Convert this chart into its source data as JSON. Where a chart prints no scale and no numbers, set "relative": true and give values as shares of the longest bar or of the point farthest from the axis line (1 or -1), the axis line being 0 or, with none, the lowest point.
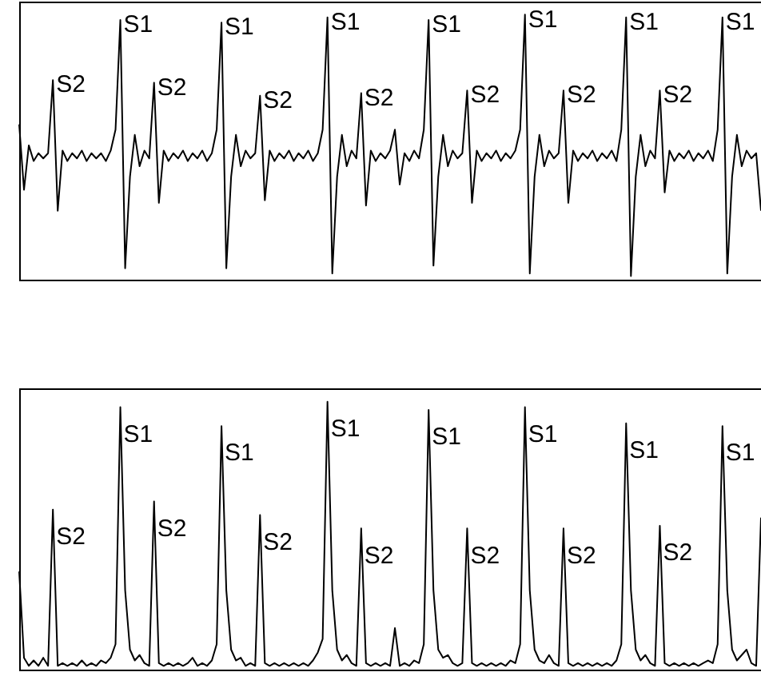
{
  "chart_data": [
    {
      "type": "line",
      "relative": true,
      "marker": "none",
      "categories": [
        null,
        null,
        null,
        null,
        null,
        null,
        null,
        null,
        null,
        null,
        null,
        null,
        null,
        null,
        null,
        null,
        null,
        null,
        null,
        null,
        null,
        null,
        null,
        null,
        null,
        null,
        null,
        null,
        null,
        null,
        null,
        null,
        null,
        null,
        null,
        null,
        null,
        null,
        null,
        null,
        null,
        null,
        null,
        null,
        null,
        null,
        null,
        null,
        null,
        null,
        null,
        null,
        null,
        null,
        null,
        null,
        null,
        null,
        null,
        null,
        null,
        null,
        null,
        null,
        null,
        null,
        null,
        null,
        null,
        null,
        null,
        null,
        null,
        null,
        null,
        null,
        null,
        null,
        null,
        null,
        null,
        null,
        null,
        null,
        null,
        null,
        null,
        null,
        null,
        null,
        null,
        null,
        null,
        null,
        null,
        null,
        null,
        null,
        null,
        null,
        null,
        null,
        null,
        null,
        null,
        null,
        null,
        null,
        null,
        null,
        null,
        null,
        null,
        null,
        null,
        null,
        null,
        null,
        null,
        null,
        null,
        null,
        null,
        null,
        null,
        null,
        null,
        null,
        null,
        null,
        null,
        null,
        null,
        null,
        null,
        null,
        null,
        null,
        null,
        null,
        null,
        null,
        null,
        null,
        null,
        null,
        null,
        null,
        null,
        null,
        null,
        null,
        null,
        null,
        null
      ],
      "series": [
        {
          "color": "#000000",
          "values": [
            0.58,
            0.33,
            0.5,
            0.44,
            0.47,
            0.45,
            0.47,
            0.75,
            0.25,
            0.48,
            0.44,
            0.47,
            0.45,
            0.48,
            0.44,
            0.47,
            0.45,
            0.47,
            0.44,
            0.48,
            0.56,
            0.98,
            0.03,
            0.38,
            0.54,
            0.42,
            0.48,
            0.45,
            0.74,
            0.28,
            0.48,
            0.44,
            0.47,
            0.45,
            0.48,
            0.44,
            0.47,
            0.45,
            0.48,
            0.44,
            0.47,
            0.56,
            0.97,
            0.03,
            0.38,
            0.54,
            0.42,
            0.48,
            0.45,
            0.47,
            0.69,
            0.29,
            0.48,
            0.44,
            0.47,
            0.45,
            0.48,
            0.44,
            0.47,
            0.45,
            0.48,
            0.44,
            0.47,
            0.56,
            0.99,
            0.01,
            0.38,
            0.54,
            0.42,
            0.48,
            0.45,
            0.7,
            0.27,
            0.48,
            0.44,
            0.47,
            0.45,
            0.48,
            0.56,
            0.35,
            0.47,
            0.44,
            0.48,
            0.45,
            0.56,
            0.98,
            0.04,
            0.38,
            0.54,
            0.42,
            0.48,
            0.45,
            0.47,
            0.71,
            0.28,
            0.48,
            0.44,
            0.47,
            0.45,
            0.48,
            0.44,
            0.47,
            0.45,
            0.48,
            0.56,
            1,
            0.01,
            0.38,
            0.54,
            0.42,
            0.48,
            0.45,
            0.47,
            0.71,
            0.28,
            0.48,
            0.44,
            0.47,
            0.45,
            0.48,
            0.44,
            0.47,
            0.45,
            0.48,
            0.44,
            0.56,
            0.99,
            0,
            0.38,
            0.54,
            0.42,
            0.48,
            0.45,
            0.71,
            0.32,
            0.48,
            0.44,
            0.47,
            0.45,
            0.48,
            0.44,
            0.47,
            0.45,
            0.48,
            0.44,
            0.56,
            0.99,
            0.01,
            0.38,
            0.54,
            0.42,
            0.48,
            0.45,
            0.47,
            0.25
          ]
        }
      ],
      "annotations": [
        "S2",
        "S1",
        "S2",
        "S1",
        "S2",
        "S1",
        "S2",
        "S1",
        "S2",
        "S1",
        "S2",
        "S1",
        "S2",
        "S1"
      ]
    },
    {
      "type": "line",
      "relative": true,
      "marker": "none",
      "categories": [
        null,
        null,
        null,
        null,
        null,
        null,
        null,
        null,
        null,
        null,
        null,
        null,
        null,
        null,
        null,
        null,
        null,
        null,
        null,
        null,
        null,
        null,
        null,
        null,
        null,
        null,
        null,
        null,
        null,
        null,
        null,
        null,
        null,
        null,
        null,
        null,
        null,
        null,
        null,
        null,
        null,
        null,
        null,
        null,
        null,
        null,
        null,
        null,
        null,
        null,
        null,
        null,
        null,
        null,
        null,
        null,
        null,
        null,
        null,
        null,
        null,
        null,
        null,
        null,
        null,
        null,
        null,
        null,
        null,
        null,
        null,
        null,
        null,
        null,
        null,
        null,
        null,
        null,
        null,
        null,
        null,
        null,
        null,
        null,
        null,
        null,
        null,
        null,
        null,
        null,
        null,
        null,
        null,
        null,
        null,
        null,
        null,
        null,
        null,
        null,
        null,
        null,
        null,
        null,
        null,
        null,
        null,
        null,
        null,
        null,
        null,
        null,
        null,
        null,
        null,
        null,
        null,
        null,
        null,
        null,
        null,
        null,
        null,
        null,
        null,
        null,
        null,
        null,
        null,
        null,
        null,
        null,
        null,
        null,
        null,
        null,
        null,
        null,
        null,
        null,
        null,
        null,
        null,
        null,
        null,
        null,
        null,
        null,
        null,
        null,
        null,
        null,
        null,
        null,
        null
      ],
      "series": [
        {
          "color": "#000000",
          "values": [
            0.37,
            0.05,
            0.02,
            0.04,
            0.02,
            0.05,
            0.02,
            0.6,
            0.02,
            0.03,
            0.02,
            0.03,
            0.02,
            0.04,
            0.02,
            0.03,
            0.02,
            0.04,
            0.03,
            0.05,
            0.1,
            0.98,
            0.3,
            0.08,
            0.04,
            0.06,
            0.03,
            0.02,
            0.63,
            0.03,
            0.02,
            0.03,
            0.02,
            0.03,
            0.02,
            0.03,
            0.05,
            0.02,
            0.03,
            0.02,
            0.04,
            0.1,
            0.91,
            0.3,
            0.08,
            0.04,
            0.05,
            0.02,
            0.03,
            0.02,
            0.58,
            0.03,
            0.02,
            0.03,
            0.02,
            0.03,
            0.02,
            0.03,
            0.02,
            0.03,
            0.02,
            0.04,
            0.07,
            0.12,
            1,
            0.3,
            0.08,
            0.04,
            0.06,
            0.03,
            0.02,
            0.53,
            0.03,
            0.02,
            0.03,
            0.02,
            0.03,
            0.02,
            0.16,
            0.02,
            0.03,
            0.02,
            0.04,
            0.03,
            0.1,
            0.97,
            0.3,
            0.08,
            0.05,
            0.06,
            0.03,
            0.02,
            0.03,
            0.53,
            0.03,
            0.02,
            0.03,
            0.02,
            0.03,
            0.02,
            0.03,
            0.02,
            0.04,
            0.03,
            0.1,
            0.98,
            0.3,
            0.08,
            0.04,
            0.03,
            0.06,
            0.03,
            0.02,
            0.53,
            0.03,
            0.02,
            0.03,
            0.02,
            0.03,
            0.02,
            0.03,
            0.02,
            0.03,
            0.02,
            0.04,
            0.1,
            0.92,
            0.3,
            0.08,
            0.04,
            0.06,
            0.03,
            0.02,
            0.54,
            0.03,
            0.02,
            0.03,
            0.02,
            0.03,
            0.02,
            0.03,
            0.02,
            0.03,
            0.04,
            0.03,
            0.1,
            0.91,
            0.3,
            0.08,
            0.04,
            0.06,
            0.08,
            0.03,
            0.02,
            0.57
          ]
        }
      ],
      "annotations": [
        "S2",
        "S1",
        "S2",
        "S1",
        "S2",
        "S1",
        "S2",
        "S1",
        "S2",
        "S1",
        "S2",
        "S1",
        "S2",
        "S1"
      ]
    }
  ]
}
